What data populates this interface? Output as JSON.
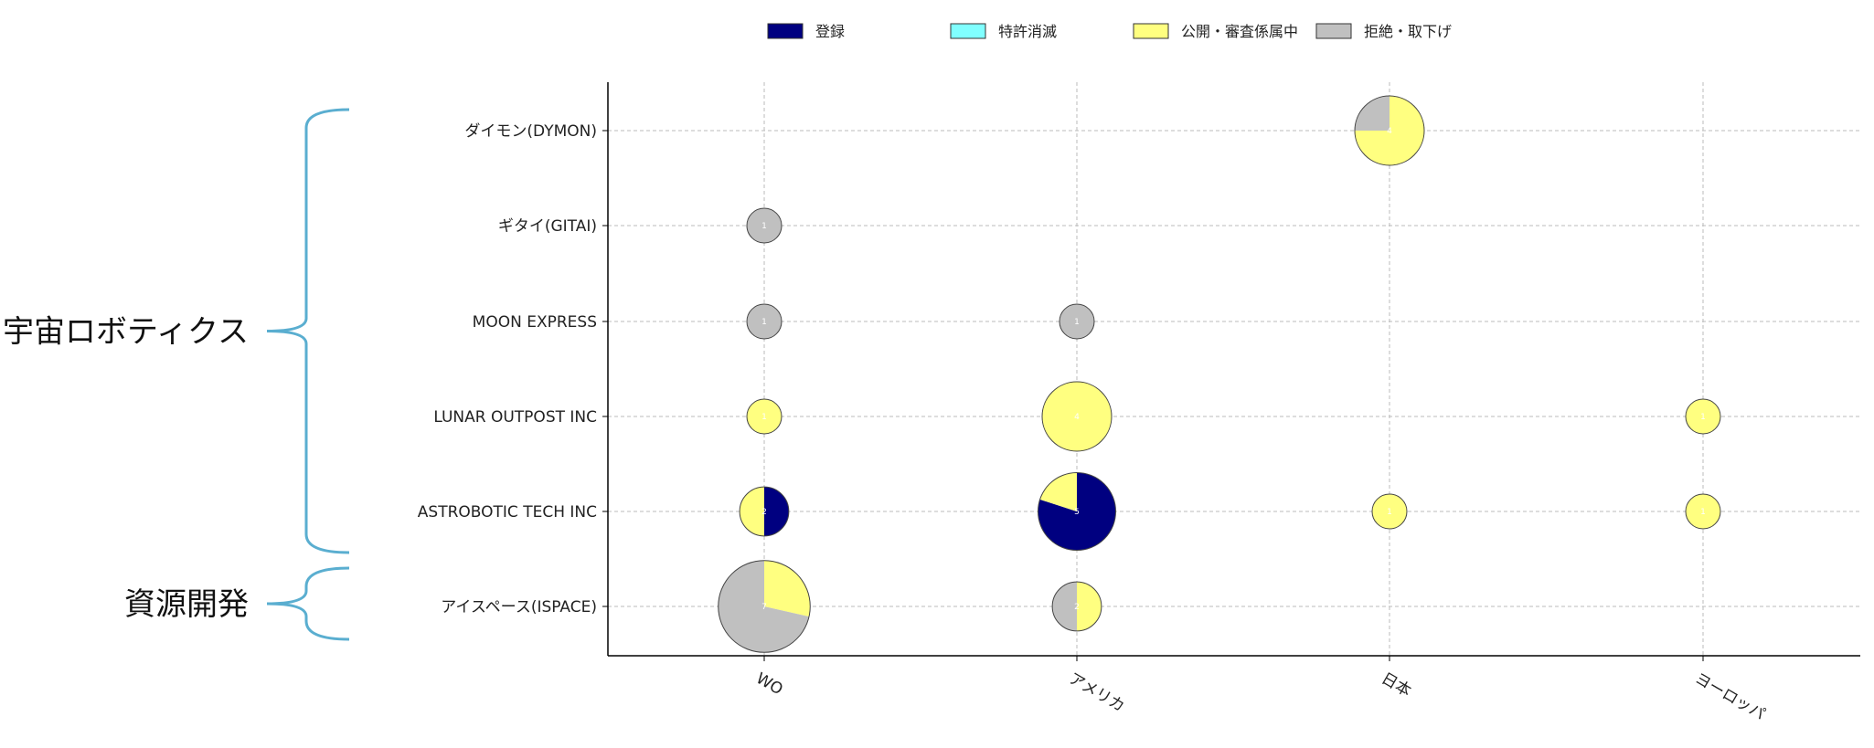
{
  "chart_data": {
    "type": "pie-bubble",
    "title": "",
    "xlabel": "",
    "ylabel": "",
    "x_categories": [
      "WO",
      "アメリカ",
      "日本",
      "ヨーロッパ"
    ],
    "y_categories": [
      "ダイモン(DYMON)",
      "ギタイ(GITAI)",
      "MOON EXPRESS",
      "LUNAR OUTPOST INC",
      "ASTROBOTIC TECH INC",
      "アイスペース(ISPACE)"
    ],
    "grid": true,
    "legend_position": "top-center",
    "statuses": [
      {
        "key": "registered",
        "name": "登録",
        "color": "#000080"
      },
      {
        "key": "lapsed",
        "name": "特許消滅",
        "color": "#80ffff"
      },
      {
        "key": "pending",
        "name": "公開・審査係属中",
        "color": "#ffff80"
      },
      {
        "key": "rejected",
        "name": "拒絶・取下げ",
        "color": "#c0c0c0"
      }
    ],
    "points": [
      {
        "company": "ダイモン(DYMON)",
        "region": "日本",
        "total": 4,
        "counts": {
          "registered": 0,
          "lapsed": 0,
          "pending": 3,
          "rejected": 1
        }
      },
      {
        "company": "ギタイ(GITAI)",
        "region": "WO",
        "total": 1,
        "counts": {
          "registered": 0,
          "lapsed": 0,
          "pending": 0,
          "rejected": 1
        }
      },
      {
        "company": "MOON EXPRESS",
        "region": "WO",
        "total": 1,
        "counts": {
          "registered": 0,
          "lapsed": 0,
          "pending": 0,
          "rejected": 1
        }
      },
      {
        "company": "MOON EXPRESS",
        "region": "アメリカ",
        "total": 1,
        "counts": {
          "registered": 0,
          "lapsed": 0,
          "pending": 0,
          "rejected": 1
        }
      },
      {
        "company": "LUNAR OUTPOST INC",
        "region": "WO",
        "total": 1,
        "counts": {
          "registered": 0,
          "lapsed": 0,
          "pending": 1,
          "rejected": 0
        }
      },
      {
        "company": "LUNAR OUTPOST INC",
        "region": "アメリカ",
        "total": 4,
        "counts": {
          "registered": 0,
          "lapsed": 0,
          "pending": 4,
          "rejected": 0
        }
      },
      {
        "company": "LUNAR OUTPOST INC",
        "region": "ヨーロッパ",
        "total": 1,
        "counts": {
          "registered": 0,
          "lapsed": 0,
          "pending": 1,
          "rejected": 0
        }
      },
      {
        "company": "ASTROBOTIC TECH INC",
        "region": "WO",
        "total": 2,
        "counts": {
          "registered": 1,
          "lapsed": 0,
          "pending": 1,
          "rejected": 0
        }
      },
      {
        "company": "ASTROBOTIC TECH INC",
        "region": "アメリカ",
        "total": 5,
        "counts": {
          "registered": 4,
          "lapsed": 0,
          "pending": 1,
          "rejected": 0
        }
      },
      {
        "company": "ASTROBOTIC TECH INC",
        "region": "日本",
        "total": 1,
        "counts": {
          "registered": 0,
          "lapsed": 0,
          "pending": 1,
          "rejected": 0
        }
      },
      {
        "company": "ASTROBOTIC TECH INC",
        "region": "ヨーロッパ",
        "total": 1,
        "counts": {
          "registered": 0,
          "lapsed": 0,
          "pending": 1,
          "rejected": 0
        }
      },
      {
        "company": "アイスペース(ISPACE)",
        "region": "WO",
        "total": 7,
        "counts": {
          "registered": 0,
          "lapsed": 0,
          "pending": 2,
          "rejected": 5
        }
      },
      {
        "company": "アイスペース(ISPACE)",
        "region": "アメリカ",
        "total": 2,
        "counts": {
          "registered": 0,
          "lapsed": 0,
          "pending": 1,
          "rejected": 1
        }
      }
    ],
    "groups": [
      {
        "label": "宇宙ロボティクス",
        "from": "ダイモン(DYMON)",
        "to": "ASTROBOTIC TECH INC"
      },
      {
        "label": "資源開発",
        "from": "アイスペース(ISPACE)",
        "to": "アイスペース(ISPACE)"
      }
    ]
  }
}
